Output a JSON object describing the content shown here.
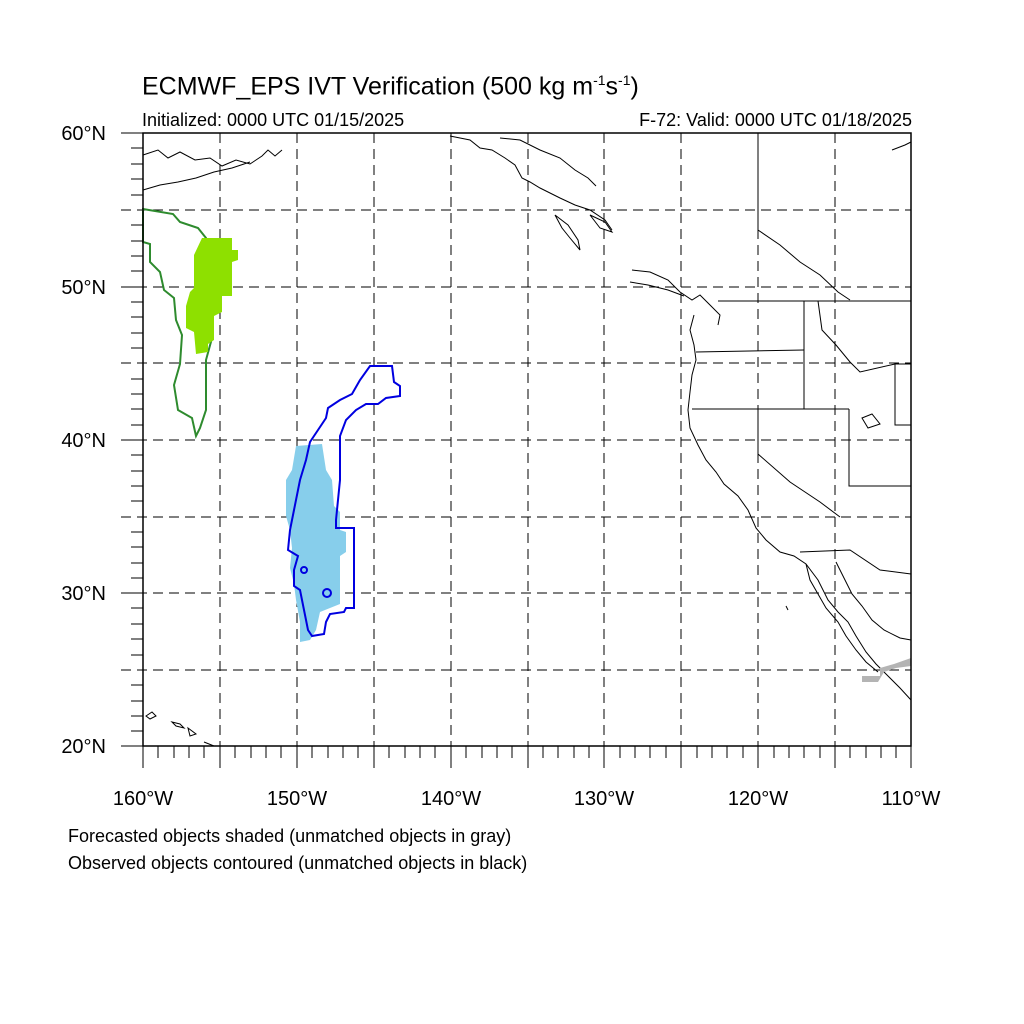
{
  "title": {
    "main": "ECMWF_EPS IVT Verification (500 kg m",
    "exp1": "-1",
    "mid": "s",
    "exp2": "-1",
    "end": ")"
  },
  "init_label": "Initialized: 0000 UTC 01/15/2025",
  "valid_label": "F-72: Valid: 0000 UTC 01/18/2025",
  "axes": {
    "lat_labels": [
      "60°N",
      "50°N",
      "40°N",
      "30°N",
      "20°N"
    ],
    "lon_labels": [
      "160°W",
      "150°W",
      "140°W",
      "130°W",
      "120°W",
      "110°W"
    ]
  },
  "captions": {
    "line1": "Forecasted objects shaded (unmatched objects in gray)",
    "line2": "Observed objects contoured (unmatched objects in black)"
  },
  "colors": {
    "forecast_green": "#8ee000",
    "observed_green": "#2e8b2e",
    "forecast_blue": "#87ceeb",
    "observed_blue": "#0000e0",
    "unmatched_forecast": "#b4b4b4",
    "land_outline": "#000000"
  }
}
